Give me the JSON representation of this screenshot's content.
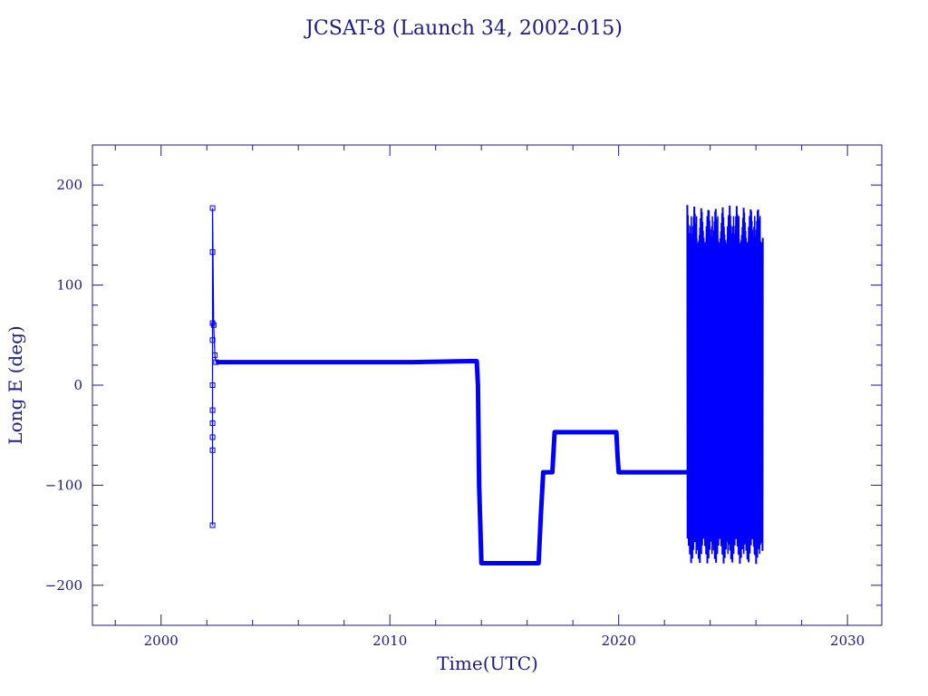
{
  "chart_data": {
    "type": "line",
    "title": "JCSAT-8 (Launch 34, 2002-015)",
    "xlabel": "Time(UTC)",
    "ylabel": "Long E (deg)",
    "xlim": [
      1997,
      2031.5
    ],
    "ylim": [
      -240,
      240
    ],
    "xticks": [
      2000,
      2010,
      2020,
      2030
    ],
    "yticks": [
      -200,
      -100,
      0,
      100,
      200
    ],
    "xtick_labels": [
      "2000",
      "2010",
      "2020",
      "2030"
    ],
    "ytick_labels": [
      "−200",
      "−100",
      "0",
      "100",
      "200"
    ],
    "grid": false,
    "colors": {
      "axis": "#1a1a8c",
      "series": "#0000ff"
    },
    "series": [
      {
        "style": "line-with-square-markers",
        "x": [
          2002.25,
          2002.25,
          2002.25,
          2002.25,
          2002.25,
          2002.25,
          2002.25,
          2002.25,
          2002.25,
          2002.25,
          2002.3,
          2002.35,
          2002.4
        ],
        "y": [
          -140,
          -65,
          -52,
          -38,
          -25,
          0,
          45,
          62,
          133,
          177,
          60,
          30,
          23
        ]
      },
      {
        "style": "line",
        "x": [
          2002.4,
          2005,
          2008,
          2011,
          2013.5,
          2013.8,
          2013.85,
          2013.9,
          2014,
          2016.5,
          2016.6,
          2016.7,
          2017.1,
          2017.2,
          2019.9,
          2019.95,
          2020,
          2023.3
        ],
        "y": [
          23,
          23,
          23,
          23,
          24,
          24,
          0,
          -100,
          -178,
          -178,
          -130,
          -87,
          -87,
          -47,
          -47,
          -70,
          -87,
          -87
        ]
      },
      {
        "style": "dense-oscillation",
        "x_range": [
          2023.0,
          2026.3
        ],
        "y_range": [
          -180,
          180
        ]
      }
    ]
  }
}
